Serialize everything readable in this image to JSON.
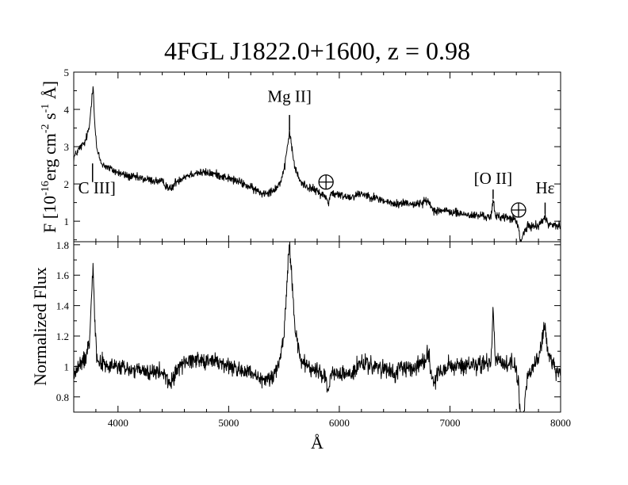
{
  "chart_data": {
    "type": "line",
    "title": "4FGL J1822.0+1600, z = 0.98",
    "xlabel": "Å",
    "xlim": [
      3600,
      8000
    ],
    "xticks": [
      4000,
      5000,
      6000,
      7000,
      8000
    ],
    "panels": [
      {
        "name": "top",
        "ylabel_text": "F [10",
        "ylabel_sup1": "-16",
        "ylabel_mid1": "erg cm",
        "ylabel_sup2": "-2",
        "ylabel_mid2": " s",
        "ylabel_sup3": "-1",
        "ylabel_end": " Å]",
        "ylim": [
          0.45,
          5.0
        ],
        "yticks": [
          1,
          2,
          3,
          4,
          5
        ],
        "noise": 0.07,
        "points": [
          [
            3600,
            2.7
          ],
          [
            3650,
            2.95
          ],
          [
            3700,
            3.1
          ],
          [
            3740,
            3.5
          ],
          [
            3760,
            4.2
          ],
          [
            3775,
            4.7
          ],
          [
            3790,
            3.6
          ],
          [
            3810,
            2.9
          ],
          [
            3850,
            2.55
          ],
          [
            3900,
            2.45
          ],
          [
            4000,
            2.3
          ],
          [
            4100,
            2.2
          ],
          [
            4200,
            2.15
          ],
          [
            4300,
            2.1
          ],
          [
            4400,
            2.05
          ],
          [
            4480,
            1.85
          ],
          [
            4520,
            2.05
          ],
          [
            4600,
            2.2
          ],
          [
            4700,
            2.3
          ],
          [
            4800,
            2.3
          ],
          [
            4900,
            2.25
          ],
          [
            5000,
            2.15
          ],
          [
            5100,
            2.05
          ],
          [
            5200,
            1.9
          ],
          [
            5300,
            1.75
          ],
          [
            5380,
            1.8
          ],
          [
            5450,
            1.95
          ],
          [
            5500,
            2.3
          ],
          [
            5530,
            3.0
          ],
          [
            5550,
            3.4
          ],
          [
            5570,
            3.0
          ],
          [
            5600,
            2.4
          ],
          [
            5650,
            2.05
          ],
          [
            5700,
            1.95
          ],
          [
            5800,
            1.8
          ],
          [
            5880,
            1.65
          ],
          [
            5900,
            1.45
          ],
          [
            5920,
            1.75
          ],
          [
            6000,
            1.7
          ],
          [
            6100,
            1.65
          ],
          [
            6200,
            1.75
          ],
          [
            6300,
            1.65
          ],
          [
            6400,
            1.55
          ],
          [
            6500,
            1.45
          ],
          [
            6600,
            1.5
          ],
          [
            6700,
            1.45
          ],
          [
            6800,
            1.55
          ],
          [
            6850,
            1.3
          ],
          [
            6900,
            1.3
          ],
          [
            7000,
            1.25
          ],
          [
            7100,
            1.2
          ],
          [
            7200,
            1.15
          ],
          [
            7300,
            1.15
          ],
          [
            7370,
            1.1
          ],
          [
            7390,
            1.55
          ],
          [
            7410,
            1.15
          ],
          [
            7500,
            1.1
          ],
          [
            7590,
            1.05
          ],
          [
            7620,
            0.8
          ],
          [
            7640,
            0.4
          ],
          [
            7660,
            0.65
          ],
          [
            7700,
            0.85
          ],
          [
            7800,
            0.9
          ],
          [
            7860,
            1.1
          ],
          [
            7880,
            0.95
          ],
          [
            7950,
            0.9
          ],
          [
            8000,
            0.85
          ]
        ],
        "annotations": [
          {
            "text": "C III]",
            "x": 3770,
            "line_y": [
              2.55,
              2.05
            ],
            "label_y": 1.75,
            "anchor": "start",
            "label_x": 3640
          },
          {
            "text": "Mg II]",
            "x": 5550,
            "line_y": [
              3.85,
              3.45
            ],
            "label_y": 4.2,
            "anchor": "middle",
            "label_x": 5550
          },
          {
            "text": "[O II]",
            "x": 7390,
            "line_y": [
              1.85,
              1.6
            ],
            "label_y": 2.0,
            "anchor": "middle",
            "label_x": 7390
          },
          {
            "text": "Hε",
            "x": 7860,
            "line_y": [
              1.5,
              1.2
            ],
            "label_y": 1.75,
            "anchor": "middle",
            "label_x": 7860
          }
        ],
        "telluric": [
          {
            "x": 5880,
            "y": 2.05
          },
          {
            "x": 7620,
            "y": 1.3
          }
        ]
      },
      {
        "name": "bottom",
        "ylabel_text": "Normalized Flux",
        "ylim": [
          0.7,
          1.82
        ],
        "yticks": [
          0.8,
          1.0,
          1.2,
          1.4,
          1.6,
          1.8
        ],
        "ytick_labels": [
          "0.8",
          "1",
          "1.2",
          "1.4",
          "1.6",
          "1.8"
        ],
        "noise": 0.035,
        "points": [
          [
            3600,
            0.95
          ],
          [
            3650,
            1.0
          ],
          [
            3700,
            1.05
          ],
          [
            3740,
            1.15
          ],
          [
            3760,
            1.45
          ],
          [
            3775,
            1.72
          ],
          [
            3790,
            1.3
          ],
          [
            3810,
            1.05
          ],
          [
            3900,
            1.0
          ],
          [
            4000,
            1.0
          ],
          [
            4100,
            0.98
          ],
          [
            4200,
            0.97
          ],
          [
            4300,
            0.96
          ],
          [
            4400,
            0.96
          ],
          [
            4480,
            0.88
          ],
          [
            4520,
            0.97
          ],
          [
            4600,
            1.03
          ],
          [
            4700,
            1.05
          ],
          [
            4800,
            1.04
          ],
          [
            4900,
            1.03
          ],
          [
            5000,
            1.0
          ],
          [
            5100,
            0.98
          ],
          [
            5200,
            0.95
          ],
          [
            5300,
            0.9
          ],
          [
            5380,
            0.93
          ],
          [
            5450,
            1.0
          ],
          [
            5500,
            1.2
          ],
          [
            5530,
            1.6
          ],
          [
            5550,
            1.8
          ],
          [
            5570,
            1.6
          ],
          [
            5600,
            1.25
          ],
          [
            5650,
            1.05
          ],
          [
            5700,
            1.0
          ],
          [
            5800,
            0.97
          ],
          [
            5880,
            0.93
          ],
          [
            5900,
            0.8
          ],
          [
            5920,
            0.95
          ],
          [
            6000,
            0.95
          ],
          [
            6100,
            0.95
          ],
          [
            6200,
            1.02
          ],
          [
            6300,
            1.0
          ],
          [
            6400,
            0.98
          ],
          [
            6500,
            0.95
          ],
          [
            6600,
            1.0
          ],
          [
            6700,
            1.0
          ],
          [
            6780,
            1.05
          ],
          [
            6800,
            1.12
          ],
          [
            6820,
            1.02
          ],
          [
            6850,
            0.88
          ],
          [
            6900,
            0.97
          ],
          [
            7000,
            1.0
          ],
          [
            7100,
            1.0
          ],
          [
            7200,
            1.0
          ],
          [
            7300,
            1.02
          ],
          [
            7370,
            1.02
          ],
          [
            7390,
            1.4
          ],
          [
            7410,
            1.05
          ],
          [
            7500,
            1.02
          ],
          [
            7590,
            1.0
          ],
          [
            7620,
            0.9
          ],
          [
            7640,
            0.6
          ],
          [
            7660,
            0.6
          ],
          [
            7700,
            0.95
          ],
          [
            7800,
            1.05
          ],
          [
            7860,
            1.28
          ],
          [
            7880,
            1.1
          ],
          [
            7950,
            0.98
          ],
          [
            8000,
            0.95
          ]
        ]
      }
    ]
  }
}
